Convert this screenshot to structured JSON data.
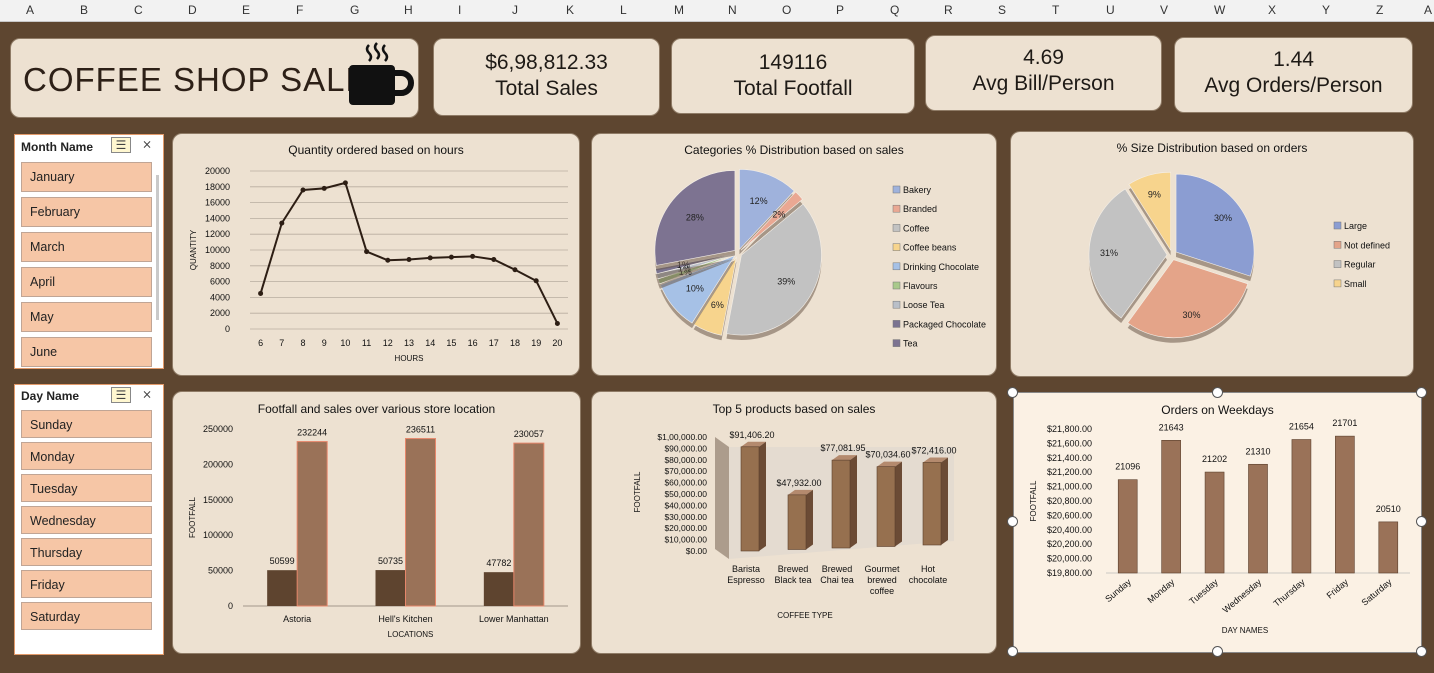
{
  "columns": [
    "A",
    "B",
    "C",
    "D",
    "E",
    "F",
    "G",
    "H",
    "I",
    "J",
    "K",
    "L",
    "M",
    "N",
    "O",
    "P",
    "Q",
    "R",
    "S",
    "T",
    "U",
    "V",
    "W",
    "X",
    "Y",
    "Z",
    "A"
  ],
  "title": "COFFEE SHOP SALES",
  "icon": "coffee-cup-icon",
  "kpis": [
    {
      "value": "$6,98,812.33",
      "label": "Total Sales"
    },
    {
      "value": "149116",
      "label": "Total Footfall"
    },
    {
      "value": "4.69",
      "label": "Avg Bill/Person"
    },
    {
      "value": "1.44",
      "label": "Avg Orders/Person"
    }
  ],
  "month_slicer": {
    "header": "Month Name",
    "items": [
      "January",
      "February",
      "March",
      "April",
      "May",
      "June"
    ]
  },
  "day_slicer": {
    "header": "Day Name",
    "items": [
      "Sunday",
      "Monday",
      "Tuesday",
      "Wednesday",
      "Thursday",
      "Friday",
      "Saturday"
    ]
  },
  "colors": {
    "background": "#5e4630",
    "panel": "#ede1d1",
    "dark_bar": "#5e442f",
    "light_bar": "#9a7258",
    "slicer_item": "#f6c6a6"
  },
  "chart_data": [
    {
      "type": "line",
      "title": "Quantity ordered based on hours",
      "xlabel": "HOURS",
      "ylabel": "QUANTITY",
      "x": [
        6,
        7,
        8,
        9,
        10,
        11,
        12,
        13,
        14,
        15,
        16,
        17,
        18,
        19,
        20
      ],
      "values": [
        4500,
        13400,
        17600,
        17800,
        18500,
        9800,
        8700,
        8800,
        9000,
        9100,
        9200,
        8800,
        7500,
        6100,
        700
      ],
      "ylim": [
        0,
        20000
      ],
      "yticks": [
        "20000",
        "18000",
        "16000",
        "14000",
        "12000",
        "10000",
        "8000",
        "6000",
        "4000",
        "2000",
        "0"
      ],
      "grid": true
    },
    {
      "type": "pie",
      "title": "Categories % Distribution based on sales",
      "categories": [
        "Bakery",
        "Branded",
        "Coffee",
        "Coffee beans",
        "Drinking Chocolate",
        "Flavours",
        "Loose Tea",
        "Packaged Chocolate",
        "Tea"
      ],
      "values": [
        12,
        2,
        39,
        6,
        10,
        1,
        1,
        1,
        28
      ],
      "labels": [
        "12%",
        "2%",
        "39%",
        "6%",
        "10%",
        "1%",
        "1%",
        "1%",
        "28%"
      ],
      "colors": [
        "#9fb2dc",
        "#eaa893",
        "#c2c2c2",
        "#f7d48d",
        "#a6c1e6",
        "#a9c98b",
        "#b9bfc8",
        "#7a7390",
        "#7d7391"
      ],
      "legend": "right"
    },
    {
      "type": "pie",
      "title": "% Size Distribution based on orders",
      "categories": [
        "Large",
        "Not defined",
        "Regular",
        "Small"
      ],
      "values": [
        30,
        30,
        31,
        9
      ],
      "labels": [
        "30%",
        "30%",
        "31%",
        "9%"
      ],
      "colors": [
        "#8b9dd2",
        "#e4a489",
        "#c2c2c2",
        "#f7d48d"
      ],
      "legend": "right"
    },
    {
      "type": "bar",
      "title": "Footfall and sales over various store location",
      "categories": [
        "Astoria",
        "Hell's Kitchen",
        "Lower Manhattan"
      ],
      "series": [
        {
          "values": [
            50599,
            50735,
            47782
          ]
        },
        {
          "values": [
            232244,
            236511,
            230057
          ]
        }
      ],
      "value_labels": [
        [
          "50599",
          "50735",
          "47782"
        ],
        [
          "232244",
          "236511",
          "230057"
        ]
      ],
      "xlabel": "LOCATIONS",
      "ylabel": "FOOTFALL",
      "ylim": [
        0,
        250000
      ],
      "yticks": [
        "250000",
        "200000",
        "150000",
        "100000",
        "50000",
        "0"
      ]
    },
    {
      "type": "bar",
      "title": "Top 5 products based on sales",
      "categories": [
        "Barista Espresso",
        "Brewed Black tea",
        "Brewed Chai tea",
        "Gourmet brewed coffee",
        "Hot chocolate"
      ],
      "category_lines": [
        [
          "Barista",
          "Espresso"
        ],
        [
          "Brewed",
          "Black tea"
        ],
        [
          "Brewed",
          "Chai tea"
        ],
        [
          "Gourmet",
          "brewed",
          "coffee"
        ],
        [
          "Hot",
          "chocolate"
        ]
      ],
      "values": [
        91406.2,
        47932.0,
        77081.95,
        70034.6,
        72416.0
      ],
      "value_labels": [
        "$91,406.20",
        "$47,932.00",
        "$77,081.95",
        "$70,034.60",
        "$72,416.00"
      ],
      "xlabel": "COFFEE TYPE",
      "ylabel": "FOOTFALL",
      "ylim": [
        0,
        100000
      ],
      "yticks": [
        "$1,00,000.00",
        "$90,000.00",
        "$80,000.00",
        "$70,000.00",
        "$60,000.00",
        "$50,000.00",
        "$40,000.00",
        "$30,000.00",
        "$20,000.00",
        "$10,000.00",
        "$0.00"
      ]
    },
    {
      "type": "bar",
      "title": "Orders on Weekdays",
      "categories": [
        "Sunday",
        "Monday",
        "Tuesday",
        "Wednesday",
        "Thursday",
        "Friday",
        "Saturday"
      ],
      "values": [
        21096,
        21643,
        21202,
        21310,
        21654,
        21701,
        20510
      ],
      "value_labels": [
        "21096",
        "21643",
        "21202",
        "21310",
        "21654",
        "21701",
        "20510"
      ],
      "xlabel": "DAY NAMES",
      "ylabel": "FOOTFALL",
      "ylim": [
        19800,
        21800
      ],
      "yticks": [
        "$21,800.00",
        "$21,600.00",
        "$21,400.00",
        "$21,200.00",
        "$21,000.00",
        "$20,800.00",
        "$20,600.00",
        "$20,400.00",
        "$20,200.00",
        "$20,000.00",
        "$19,800.00"
      ]
    }
  ]
}
